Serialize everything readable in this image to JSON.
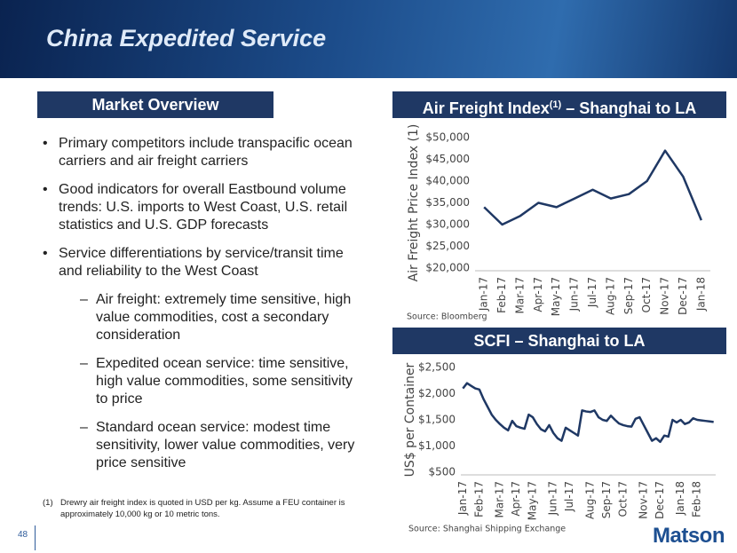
{
  "header": {
    "title": "China Expedited Service"
  },
  "overview": {
    "title": "Market Overview",
    "bullets": [
      "Primary competitors include transpacific ocean carriers and air freight carriers",
      "Good indicators for overall Eastbound volume trends: U.S. imports to West Coast, U.S. retail statistics and U.S. GDP forecasts",
      "Service differentiations by service/transit time and reliability to the West Coast"
    ],
    "sub_bullets": [
      "Air freight: extremely time sensitive, high value commodities, cost a secondary consideration",
      "Expedited ocean service: time sensitive, high value commodities, some sensitivity to price",
      "Standard ocean service: modest time sensitivity, lower value commodities, very price sensitive"
    ]
  },
  "footnote": {
    "marker": "(1)",
    "text": "Drewry air freight index is quoted in USD per kg.  Assume a FEU container is approximately 10,000 kg or 10 metric tons."
  },
  "footer": {
    "page": "48",
    "logo": "Matson"
  },
  "chart_data": [
    {
      "type": "line",
      "title": [
        "Air Freight Index",
        "(1)",
        " – Shanghai to LA"
      ],
      "y_label": "Air Freight Price Index (1)",
      "source": "Source: Bloomberg",
      "categories": [
        "Jan-17",
        "Feb-17",
        "Mar-17",
        "Apr-17",
        "May-17",
        "Jun-17",
        "Jul-17",
        "Aug-17",
        "Sep-17",
        "Oct-17",
        "Nov-17",
        "Dec-17",
        "Jan-18"
      ],
      "values": [
        34000,
        30000,
        32000,
        35000,
        34000,
        36000,
        38000,
        36000,
        37000,
        40000,
        47000,
        41000,
        31000
      ],
      "color": "#1f3864",
      "ylim": [
        20000,
        50000
      ],
      "yticks": [
        {
          "value": 20000,
          "label": "$20,000"
        },
        {
          "value": 25000,
          "label": "$25,000"
        },
        {
          "value": 30000,
          "label": "$30,000"
        },
        {
          "value": 35000,
          "label": "$35,000"
        },
        {
          "value": 40000,
          "label": "$40,000"
        },
        {
          "value": 45000,
          "label": "$45,000"
        },
        {
          "value": 50000,
          "label": "$50,000"
        }
      ],
      "grid": false
    },
    {
      "type": "line",
      "title": [
        "SCFI – Shanghai to LA"
      ],
      "y_label": "US$ per Container",
      "source": "Source: Shanghai Shipping Exchange",
      "categories": [
        "Jan-17",
        null,
        null,
        null,
        "Feb-17",
        null,
        null,
        null,
        null,
        "Mar-17",
        null,
        null,
        null,
        "Apr-17",
        null,
        null,
        null,
        "May-17",
        null,
        null,
        null,
        null,
        "Jun-17",
        null,
        null,
        null,
        "Jul-17",
        null,
        null,
        null,
        null,
        "Aug-17",
        null,
        null,
        null,
        "Sep-17",
        null,
        null,
        null,
        "Oct-17",
        null,
        null,
        null,
        null,
        "Nov-17",
        null,
        null,
        null,
        "Dec-17",
        null,
        null,
        null,
        null,
        "Jan-18",
        null,
        null,
        null,
        "Feb-18",
        null,
        null,
        null,
        null
      ],
      "values": [
        2100,
        2200,
        2150,
        2100,
        2080,
        1900,
        1750,
        1600,
        1500,
        1420,
        1350,
        1300,
        1480,
        1380,
        1350,
        1330,
        1600,
        1550,
        1420,
        1320,
        1280,
        1400,
        1250,
        1150,
        1100,
        1350,
        1300,
        1250,
        1200,
        1680,
        1660,
        1650,
        1680,
        1550,
        1500,
        1480,
        1580,
        1500,
        1430,
        1400,
        1380,
        1370,
        1520,
        1550,
        1400,
        1250,
        1100,
        1150,
        1080,
        1200,
        1180,
        1500,
        1450,
        1500,
        1420,
        1450,
        1530,
        1500,
        1490,
        1480,
        1470,
        1460
      ],
      "color": "#1f3864",
      "ylim": [
        500,
        2500
      ],
      "yticks": [
        {
          "value": 500,
          "label": "$500"
        },
        {
          "value": 1000,
          "label": "$1,000"
        },
        {
          "value": 1500,
          "label": "$1,500"
        },
        {
          "value": 2000,
          "label": "$2,000"
        },
        {
          "value": 2500,
          "label": "$2,500"
        }
      ],
      "grid": false
    }
  ]
}
